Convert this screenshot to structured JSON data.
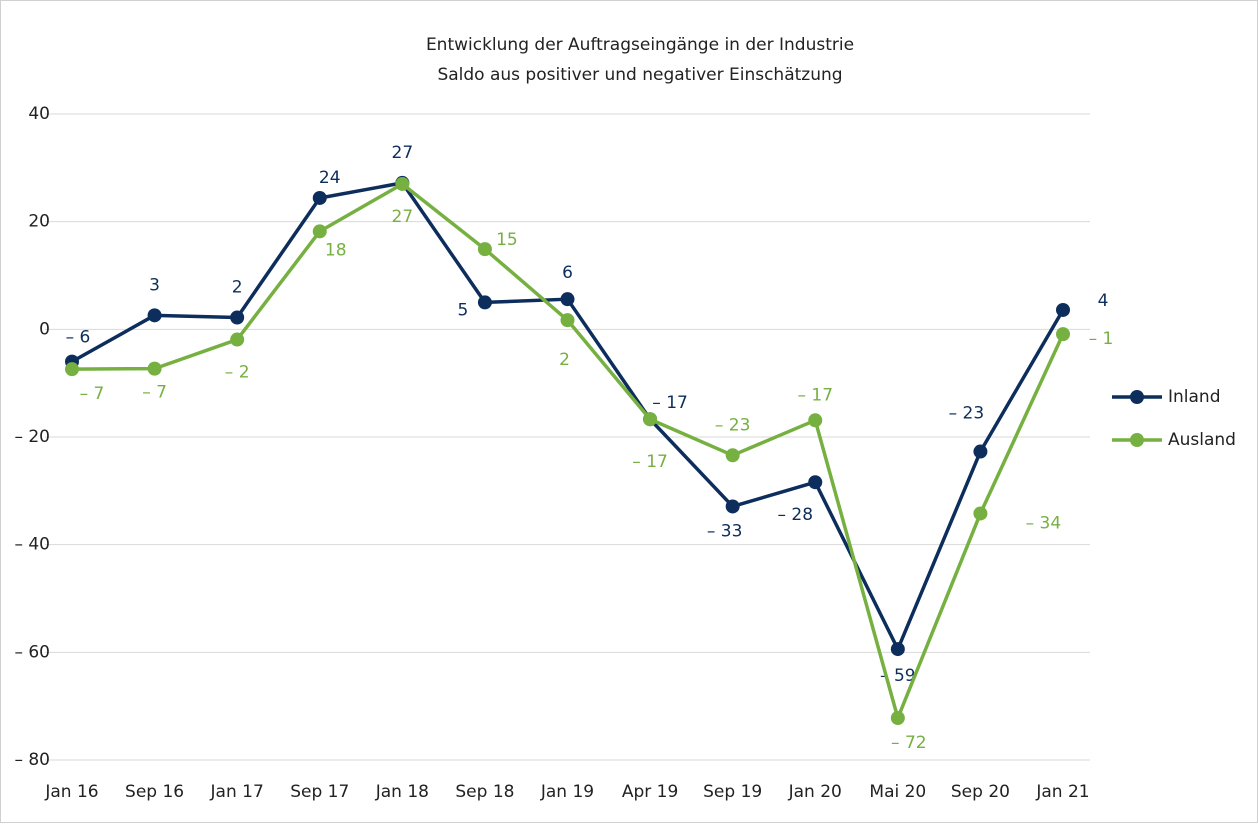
{
  "chart_data": {
    "type": "line",
    "title": "Entwicklung der Auftragseingänge in der Industrie",
    "subtitle": "Saldo aus positiver und negativer Einschätzung",
    "categories": [
      "Jan 16",
      "Sep 16",
      "Jan 17",
      "Sep 17",
      "Jan 18",
      "Sep 18",
      "Jan 19",
      "Apr 19",
      "Sep 19",
      "Jan 20",
      "Mai 20",
      "Sep 20",
      "Jan 21"
    ],
    "series": [
      {
        "name": "Inland",
        "color": "#0d2e5c",
        "values": [
          -6,
          2.6,
          2.2,
          24.4,
          27.2,
          5,
          5.6,
          -16.7,
          -32.9,
          -28.4,
          -59.4,
          -22.7,
          3.6
        ],
        "value_labels": [
          "– 6",
          "3",
          "2",
          "24",
          "27",
          "5",
          "6",
          "– 17",
          "– 33",
          "– 28",
          "– 59",
          "– 23",
          "4"
        ]
      },
      {
        "name": "Ausland",
        "color": "#76b041",
        "values": [
          -7.4,
          -7.3,
          -1.9,
          18.2,
          27,
          14.9,
          1.7,
          -16.7,
          -23.4,
          -16.9,
          -72.2,
          -34.2,
          -0.9
        ],
        "value_labels": [
          "– 7",
          "– 7",
          "– 2",
          "18",
          "27",
          "15",
          "2",
          "– 17",
          "– 23",
          "– 17",
          "– 72",
          "– 34",
          "– 1"
        ]
      }
    ],
    "ylim": [
      -80,
      40
    ],
    "yticks": [
      {
        "value": -80,
        "label": "– 80"
      },
      {
        "value": -60,
        "label": "– 60"
      },
      {
        "value": -40,
        "label": "– 40"
      },
      {
        "value": -20,
        "label": "– 20"
      },
      0,
      20,
      40
    ],
    "grid": true,
    "legend": "right"
  }
}
